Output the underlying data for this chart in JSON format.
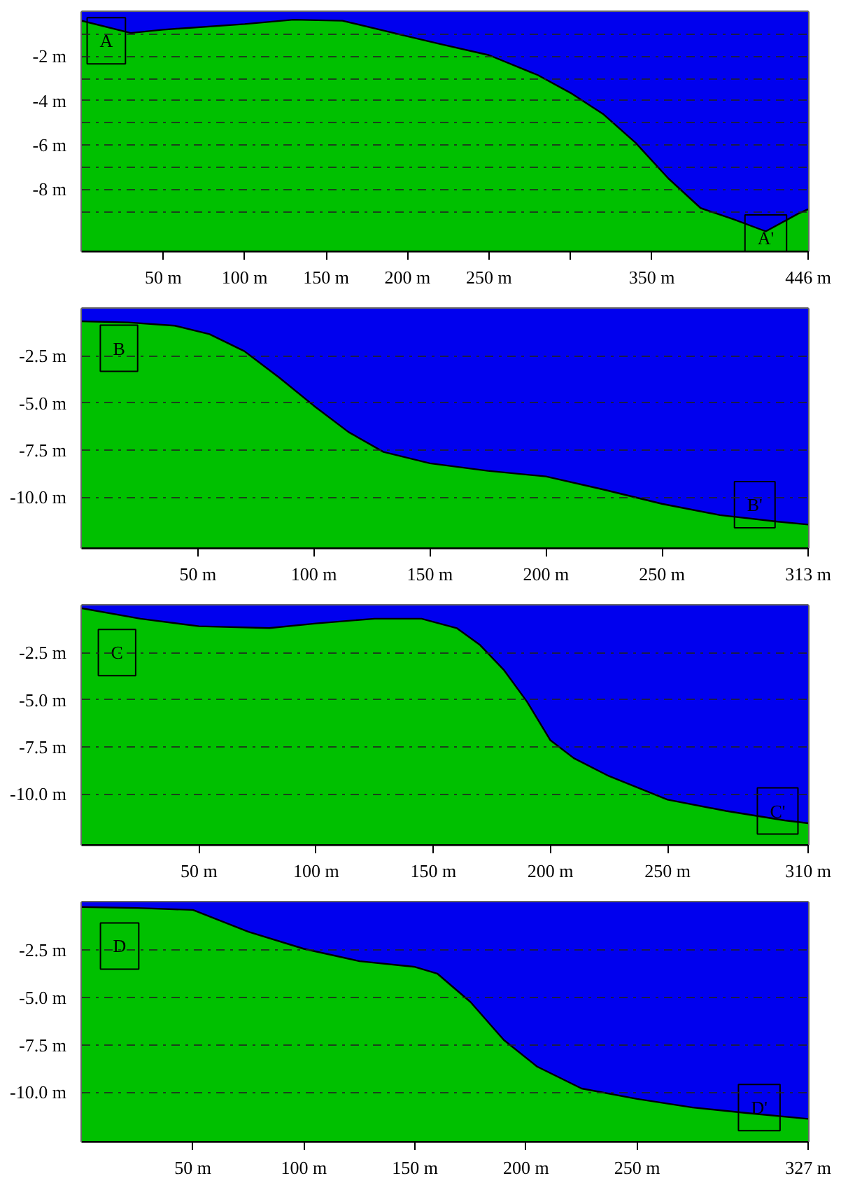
{
  "chart_data": [
    {
      "type": "area",
      "x": [
        0,
        30,
        50,
        100,
        130,
        160,
        200,
        220,
        250,
        280,
        300,
        320,
        340,
        360,
        380,
        400,
        420,
        440,
        446
      ],
      "series": [
        {
          "color": "#0000ee",
          "values": [
            -0.4,
            -0.95,
            -0.8,
            -0.55,
            -0.35,
            -0.4,
            -1.1,
            -1.45,
            -1.95,
            -2.85,
            -3.65,
            -4.6,
            -5.9,
            -7.5,
            -8.85,
            -9.35,
            -9.9,
            -9.1,
            -8.9
          ]
        }
      ],
      "xlim": [
        0,
        446
      ],
      "ylim": [
        -10.8,
        0
      ],
      "bands": [
        {
          "axis": "y",
          "from": -10.8,
          "to": 0,
          "color": "#00c000"
        }
      ],
      "xticks": [
        {
          "value": 50,
          "label": "50 m"
        },
        {
          "value": 100,
          "label": "100 m"
        },
        {
          "value": 150,
          "label": "150 m"
        },
        {
          "value": 200,
          "label": "200 m"
        },
        {
          "value": 250,
          "label": "250 m"
        },
        {
          "value": 300,
          "label": null
        },
        {
          "value": 350,
          "label": "350 m"
        },
        {
          "value": 446,
          "label": "446 m"
        }
      ],
      "yticks": [
        {
          "value": -1,
          "label": null
        },
        {
          "value": -2,
          "label": "-2 m"
        },
        {
          "value": -3,
          "label": null
        },
        {
          "value": -4,
          "label": "-4 m"
        },
        {
          "value": -5,
          "label": null
        },
        {
          "value": -6,
          "label": "-6 m"
        },
        {
          "value": -7,
          "label": null
        },
        {
          "value": -8,
          "label": "-8 m"
        },
        {
          "value": -9,
          "label": null
        }
      ],
      "grid": "y",
      "annotations": [
        {
          "text": "A",
          "x": 15,
          "y": -1.3
        },
        {
          "text": "A'",
          "x": 420,
          "y": -10.2
        }
      ]
    },
    {
      "type": "area",
      "x": [
        0,
        20,
        40,
        55,
        70,
        85,
        100,
        115,
        130,
        150,
        175,
        200,
        225,
        250,
        275,
        300,
        313
      ],
      "series": [
        {
          "color": "#0000ee",
          "values": [
            -0.67,
            -0.73,
            -0.9,
            -1.35,
            -2.25,
            -3.65,
            -5.15,
            -6.55,
            -7.6,
            -8.2,
            -8.6,
            -8.9,
            -9.6,
            -10.35,
            -10.95,
            -11.3,
            -11.45
          ]
        }
      ],
      "xlim": [
        0,
        313
      ],
      "ylim": [
        -12.7,
        0
      ],
      "bands": [
        {
          "axis": "y",
          "from": -12.7,
          "to": 0,
          "color": "#00c000"
        }
      ],
      "xticks": [
        {
          "value": 50,
          "label": "50 m"
        },
        {
          "value": 100,
          "label": "100 m"
        },
        {
          "value": 150,
          "label": "150 m"
        },
        {
          "value": 200,
          "label": "200 m"
        },
        {
          "value": 250,
          "label": "250 m"
        },
        {
          "value": 313,
          "label": "313 m"
        }
      ],
      "yticks": [
        {
          "value": -2.5,
          "label": "-2.5 m"
        },
        {
          "value": -5,
          "label": "-5.0 m"
        },
        {
          "value": -7.5,
          "label": "-7.5 m"
        },
        {
          "value": -10,
          "label": "-10.0 m"
        }
      ],
      "grid": "y",
      "annotations": [
        {
          "text": "B",
          "x": 16,
          "y": -2.1
        },
        {
          "text": "B'",
          "x": 290,
          "y": -10.4
        }
      ]
    },
    {
      "type": "area",
      "x": [
        0,
        25,
        50,
        80,
        100,
        125,
        145,
        160,
        170,
        180,
        190,
        200,
        210,
        225,
        250,
        275,
        300,
        310
      ],
      "series": [
        {
          "color": "#0000ee",
          "values": [
            -0.15,
            -0.7,
            -1.1,
            -1.2,
            -0.95,
            -0.7,
            -0.7,
            -1.2,
            -2.1,
            -3.4,
            -5.1,
            -7.15,
            -8.1,
            -9.05,
            -10.3,
            -10.9,
            -11.4,
            -11.55
          ]
        }
      ],
      "xlim": [
        0,
        310
      ],
      "ylim": [
        -12.7,
        0
      ],
      "bands": [
        {
          "axis": "y",
          "from": -12.7,
          "to": 0,
          "color": "#00c000"
        }
      ],
      "xticks": [
        {
          "value": 50,
          "label": "50 m"
        },
        {
          "value": 100,
          "label": "100 m"
        },
        {
          "value": 150,
          "label": "150 m"
        },
        {
          "value": 200,
          "label": "200 m"
        },
        {
          "value": 250,
          "label": "250 m"
        },
        {
          "value": 310,
          "label": "310 m"
        }
      ],
      "yticks": [
        {
          "value": -2.5,
          "label": "-2.5 m"
        },
        {
          "value": -5,
          "label": "-5.0 m"
        },
        {
          "value": -7.5,
          "label": "-7.5 m"
        },
        {
          "value": -10,
          "label": "-10.0 m"
        }
      ],
      "grid": "y",
      "annotations": [
        {
          "text": "C",
          "x": 15,
          "y": -2.5
        },
        {
          "text": "C'",
          "x": 297,
          "y": -10.9
        }
      ]
    },
    {
      "type": "area",
      "x": [
        0,
        25,
        50,
        75,
        100,
        125,
        150,
        160,
        175,
        190,
        205,
        225,
        250,
        275,
        300,
        327
      ],
      "series": [
        {
          "color": "#0000ee",
          "values": [
            -0.25,
            -0.3,
            -0.4,
            -1.55,
            -2.45,
            -3.1,
            -3.4,
            -3.75,
            -5.25,
            -7.25,
            -8.65,
            -9.8,
            -10.35,
            -10.8,
            -11.1,
            -11.4
          ]
        }
      ],
      "xlim": [
        0,
        327
      ],
      "ylim": [
        -12.6,
        0
      ],
      "bands": [
        {
          "axis": "y",
          "from": -12.6,
          "to": 0,
          "color": "#00c000"
        }
      ],
      "xticks": [
        {
          "value": 50,
          "label": "50 m"
        },
        {
          "value": 100,
          "label": "100 m"
        },
        {
          "value": 150,
          "label": "150 m"
        },
        {
          "value": 200,
          "label": "200 m"
        },
        {
          "value": 250,
          "label": "250 m"
        },
        {
          "value": 327,
          "label": "327 m"
        }
      ],
      "yticks": [
        {
          "value": -2.5,
          "label": "-2.5 m"
        },
        {
          "value": -5,
          "label": "-5.0 m"
        },
        {
          "value": -7.5,
          "label": "-7.5 m"
        },
        {
          "value": -10,
          "label": "-10.0 m"
        }
      ],
      "grid": "y",
      "annotations": [
        {
          "text": "D",
          "x": 17,
          "y": -2.3
        },
        {
          "text": "D'",
          "x": 305,
          "y": -10.8
        }
      ]
    }
  ]
}
